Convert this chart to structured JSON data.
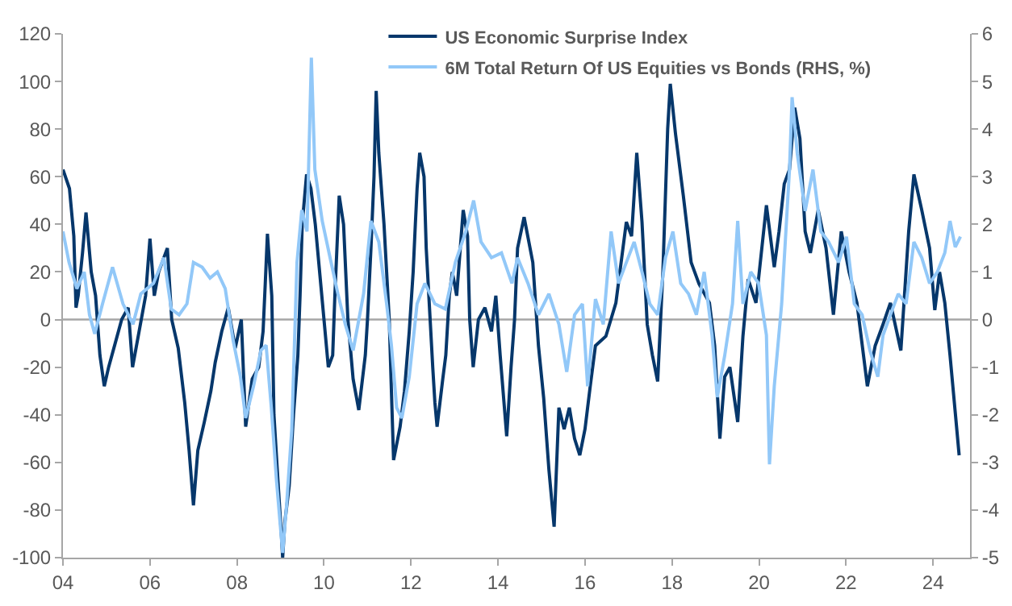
{
  "chart_data": {
    "type": "line",
    "legend": "top",
    "grid": false,
    "xlim": [
      2004,
      2024.85
    ],
    "xticks": [
      {
        "value": 2004,
        "label": "04"
      },
      {
        "value": 2006,
        "label": "06"
      },
      {
        "value": 2008,
        "label": "08"
      },
      {
        "value": 2010,
        "label": "10"
      },
      {
        "value": 2012,
        "label": "12"
      },
      {
        "value": 2014,
        "label": "14"
      },
      {
        "value": 2016,
        "label": "16"
      },
      {
        "value": 2018,
        "label": "18"
      },
      {
        "value": 2020,
        "label": "20"
      },
      {
        "value": 2022,
        "label": "22"
      },
      {
        "value": 2024,
        "label": "24"
      }
    ],
    "ylim": [
      -100,
      120
    ],
    "yticks": [
      -100,
      -80,
      -60,
      -40,
      -20,
      0,
      20,
      40,
      60,
      80,
      100,
      120
    ],
    "y2lim": [
      -5,
      6
    ],
    "y2ticks": [
      -5,
      -4,
      -3,
      -2,
      -1,
      0,
      1,
      2,
      3,
      4,
      5,
      6
    ],
    "ref_lines": [
      {
        "axis": "y",
        "value": 0,
        "color": "#a6a6a6"
      }
    ],
    "series": [
      {
        "name": "US Economic Surprise Index",
        "color": "#06376b",
        "x": [
          2004.0,
          2004.15,
          2004.25,
          2004.3,
          2004.35,
          2004.45,
          2004.53,
          2004.65,
          2004.75,
          2004.85,
          2004.95,
          2005.05,
          2005.2,
          2005.35,
          2005.5,
          2005.6,
          2005.75,
          2005.9,
          2006.0,
          2006.1,
          2006.2,
          2006.3,
          2006.4,
          2006.5,
          2006.65,
          2006.8,
          2006.9,
          2007.0,
          2007.1,
          2007.25,
          2007.4,
          2007.5,
          2007.65,
          2007.8,
          2007.96,
          2008.1,
          2008.2,
          2008.35,
          2008.5,
          2008.6,
          2008.65,
          2008.7,
          2008.8,
          2008.85,
          2008.95,
          2009.02,
          2009.05,
          2009.1,
          2009.2,
          2009.3,
          2009.4,
          2009.45,
          2009.5,
          2009.6,
          2009.7,
          2009.8,
          2009.9,
          2010.0,
          2010.1,
          2010.2,
          2010.25,
          2010.35,
          2010.45,
          2010.55,
          2010.67,
          2010.8,
          2010.95,
          2011.0,
          2011.08,
          2011.15,
          2011.2,
          2011.26,
          2011.38,
          2011.5,
          2011.55,
          2011.6,
          2011.75,
          2011.85,
          2011.96,
          2012.05,
          2012.1,
          2012.14,
          2012.2,
          2012.3,
          2012.35,
          2012.44,
          2012.5,
          2012.55,
          2012.6,
          2012.73,
          2012.8,
          2012.88,
          2012.95,
          2013.05,
          2013.2,
          2013.3,
          2013.35,
          2013.43,
          2013.55,
          2013.7,
          2013.85,
          2013.95,
          2014.05,
          2014.2,
          2014.3,
          2014.38,
          2014.45,
          2014.6,
          2014.8,
          2014.93,
          2015.05,
          2015.17,
          2015.29,
          2015.4,
          2015.52,
          2015.64,
          2015.76,
          2015.88,
          2016.0,
          2016.12,
          2016.24,
          2016.48,
          2016.71,
          2016.95,
          2017.07,
          2017.19,
          2017.31,
          2017.43,
          2017.55,
          2017.67,
          2017.79,
          2017.9,
          2017.96,
          2018.08,
          2018.26,
          2018.44,
          2018.62,
          2018.86,
          2018.98,
          2019.1,
          2019.21,
          2019.33,
          2019.51,
          2019.63,
          2019.75,
          2019.93,
          2020.17,
          2020.35,
          2020.46,
          2020.58,
          2020.7,
          2020.82,
          2020.94,
          2021.06,
          2021.18,
          2021.36,
          2021.54,
          2021.71,
          2021.89,
          2022.07,
          2022.25,
          2022.49,
          2022.67,
          2022.85,
          2023.02,
          2023.26,
          2023.44,
          2023.56,
          2023.74,
          2023.92,
          2024.04,
          2024.15,
          2024.27,
          2024.39,
          2024.51,
          2024.6
        ],
        "values": [
          63,
          55,
          35,
          5,
          10,
          28,
          45,
          20,
          10,
          -15,
          -28,
          -20,
          -10,
          0,
          5,
          -20,
          -5,
          10,
          34,
          10,
          20,
          25,
          30,
          0,
          -12,
          -35,
          -55,
          -78,
          -55,
          -43,
          -30,
          -18,
          -5,
          5,
          -12,
          0,
          -45,
          -25,
          -20,
          -5,
          15,
          36,
          10,
          -40,
          -70,
          -90,
          -100,
          -85,
          -70,
          -40,
          -15,
          10,
          40,
          61,
          55,
          40,
          20,
          0,
          -20,
          -15,
          10,
          52,
          40,
          0,
          -25,
          -38,
          -15,
          0,
          30,
          60,
          96,
          70,
          40,
          0,
          -30,
          -59,
          -45,
          -30,
          -5,
          20,
          40,
          55,
          70,
          60,
          30,
          0,
          -20,
          -35,
          -45,
          -25,
          -15,
          10,
          20,
          10,
          46,
          35,
          0,
          -20,
          0,
          5,
          -5,
          10,
          -15,
          -49,
          -20,
          0,
          30,
          43,
          24,
          -11,
          -33,
          -63,
          -87,
          -37,
          -46,
          -37,
          -50,
          -57,
          -46,
          -28,
          -11,
          -7,
          7,
          41,
          35,
          70,
          41,
          -2,
          -15,
          -26,
          20,
          80,
          99,
          78,
          52,
          24,
          15,
          7,
          -11,
          -50,
          -24,
          -20,
          -43,
          -7,
          17,
          7,
          48,
          22,
          37,
          57,
          63,
          89,
          76,
          37,
          28,
          46,
          30,
          2,
          37,
          20,
          7,
          -28,
          -11,
          -2,
          7,
          -13,
          37,
          61,
          46,
          30,
          4,
          20,
          7,
          -15,
          -39,
          -57
        ]
      },
      {
        "name": "6M Total Return Of US Equities vs Bonds (RHS, %)",
        "color": "#92c8f8",
        "axis": "y2",
        "x": [
          2004.0,
          2004.14,
          2004.32,
          2004.49,
          2004.61,
          2004.73,
          2004.91,
          2005.14,
          2005.38,
          2005.61,
          2005.79,
          2006.08,
          2006.32,
          2006.49,
          2006.67,
          2006.85,
          2007.0,
          2007.2,
          2007.38,
          2007.55,
          2007.73,
          2007.91,
          2008.08,
          2008.2,
          2008.38,
          2008.55,
          2008.67,
          2008.79,
          2008.91,
          2009.05,
          2009.14,
          2009.26,
          2009.38,
          2009.49,
          2009.61,
          2009.71,
          2009.79,
          2009.96,
          2010.14,
          2010.32,
          2010.49,
          2010.67,
          2010.91,
          2011.08,
          2011.26,
          2011.44,
          2011.55,
          2011.67,
          2011.79,
          2011.96,
          2012.14,
          2012.32,
          2012.55,
          2012.79,
          2013.02,
          2013.26,
          2013.44,
          2013.61,
          2013.85,
          2014.08,
          2014.32,
          2014.45,
          2014.69,
          2014.93,
          2015.17,
          2015.4,
          2015.58,
          2015.76,
          2015.94,
          2016.06,
          2016.24,
          2016.42,
          2016.6,
          2016.77,
          2016.95,
          2017.13,
          2017.31,
          2017.49,
          2017.67,
          2017.85,
          2018.02,
          2018.2,
          2018.38,
          2018.56,
          2018.74,
          2018.92,
          2019.04,
          2019.21,
          2019.39,
          2019.51,
          2019.63,
          2019.81,
          2019.99,
          2020.17,
          2020.24,
          2020.35,
          2020.52,
          2020.7,
          2020.76,
          2020.88,
          2021.06,
          2021.24,
          2021.42,
          2021.6,
          2021.83,
          2022.01,
          2022.19,
          2022.37,
          2022.55,
          2022.73,
          2022.85,
          2023.02,
          2023.2,
          2023.38,
          2023.56,
          2023.74,
          2023.92,
          2024.1,
          2024.27,
          2024.39,
          2024.51,
          2024.63
        ],
        "values": [
          1.85,
          1.2,
          0.65,
          1.0,
          0.1,
          -0.3,
          0.33,
          1.1,
          0.33,
          -0.1,
          0.54,
          0.76,
          1.3,
          0.22,
          0.1,
          0.33,
          1.2,
          1.1,
          0.87,
          1.0,
          0.65,
          -0.43,
          -1.2,
          -2.07,
          -1.4,
          -0.65,
          -0.54,
          -1.85,
          -3.4,
          -4.9,
          -3.9,
          -2.3,
          1.2,
          2.3,
          1.85,
          5.5,
          3.15,
          2.07,
          1.3,
          0.54,
          -0.1,
          -0.65,
          0.54,
          2.07,
          1.63,
          0.33,
          -0.54,
          -1.85,
          -2.07,
          -1.2,
          0.33,
          0.76,
          0.33,
          0.22,
          1.2,
          1.85,
          2.5,
          1.63,
          1.3,
          1.4,
          0.76,
          1.3,
          0.76,
          0.1,
          0.54,
          -0.1,
          -1.1,
          0.1,
          0.33,
          -1.4,
          0.43,
          -0.1,
          1.85,
          0.76,
          1.2,
          1.63,
          1.0,
          0.33,
          0.1,
          1.3,
          1.85,
          0.76,
          0.54,
          0.1,
          1.0,
          -0.33,
          -1.63,
          -0.76,
          0.33,
          2.07,
          0.33,
          1.0,
          0.76,
          -0.33,
          -3.04,
          -1.4,
          0.33,
          3.15,
          4.67,
          3.48,
          2.28,
          3.15,
          1.85,
          1.63,
          1.2,
          1.74,
          0.33,
          0.1,
          -0.65,
          -1.2,
          -0.33,
          0.1,
          0.54,
          0.33,
          1.63,
          1.3,
          0.76,
          1.0,
          1.4,
          2.07,
          1.52,
          1.74
        ]
      }
    ]
  }
}
